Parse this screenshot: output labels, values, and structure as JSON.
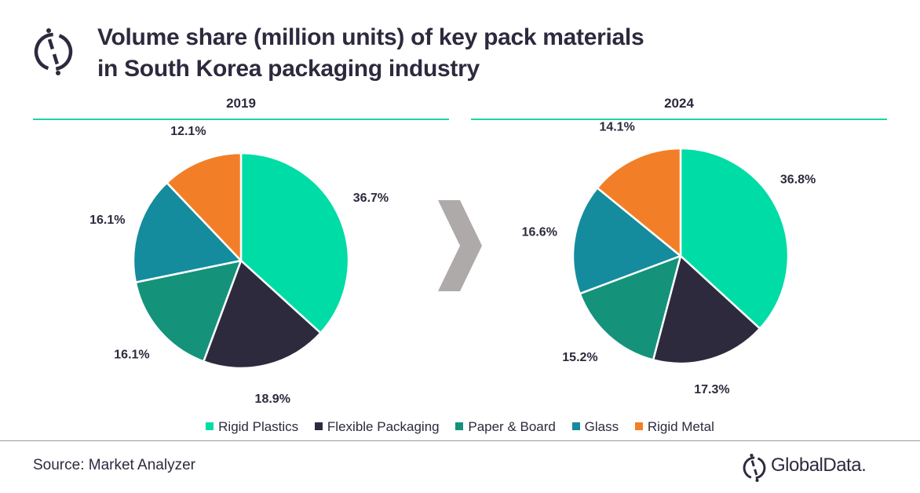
{
  "header": {
    "title_line1": "Volume share (million units) of key pack materials",
    "title_line2": "in South Korea packaging industry",
    "logo_icon": "globaldata-logo-icon"
  },
  "footer": {
    "source": "Source: Market Analyzer",
    "brand": "GlobalData."
  },
  "arrow_icon": "chevron-right-icon",
  "chart_data": [
    {
      "type": "pie",
      "title": "2019",
      "categories": [
        "Rigid Plastics",
        "Flexible Packaging",
        "Paper & Board",
        "Glass",
        "Rigid Metal"
      ],
      "values": [
        36.7,
        18.9,
        16.1,
        16.1,
        12.1
      ],
      "labels": [
        "36.7%",
        "18.9%",
        "16.1%",
        "16.1%",
        "12.1%"
      ],
      "colors": [
        "#00dca5",
        "#2e2a3e",
        "#14937a",
        "#148c9e",
        "#f27f28"
      ],
      "start": "12 o'clock, clockwise",
      "legend_position": "bottom"
    },
    {
      "type": "pie",
      "title": "2024",
      "categories": [
        "Rigid Plastics",
        "Flexible Packaging",
        "Paper & Board",
        "Glass",
        "Rigid Metal"
      ],
      "values": [
        36.8,
        17.3,
        15.2,
        16.6,
        14.1
      ],
      "labels": [
        "36.8%",
        "17.3%",
        "15.2%",
        "16.6%",
        "14.1%"
      ],
      "colors": [
        "#00dca5",
        "#2e2a3e",
        "#14937a",
        "#148c9e",
        "#f27f28"
      ],
      "start": "12 o'clock, clockwise",
      "legend_position": "bottom"
    }
  ],
  "legend": [
    {
      "label": "Rigid Plastics",
      "color": "#00dca5"
    },
    {
      "label": "Flexible Packaging",
      "color": "#2e2a3e"
    },
    {
      "label": "Paper & Board",
      "color": "#14937a"
    },
    {
      "label": "Glass",
      "color": "#148c9e"
    },
    {
      "label": "Rigid Metal",
      "color": "#f27f28"
    }
  ]
}
